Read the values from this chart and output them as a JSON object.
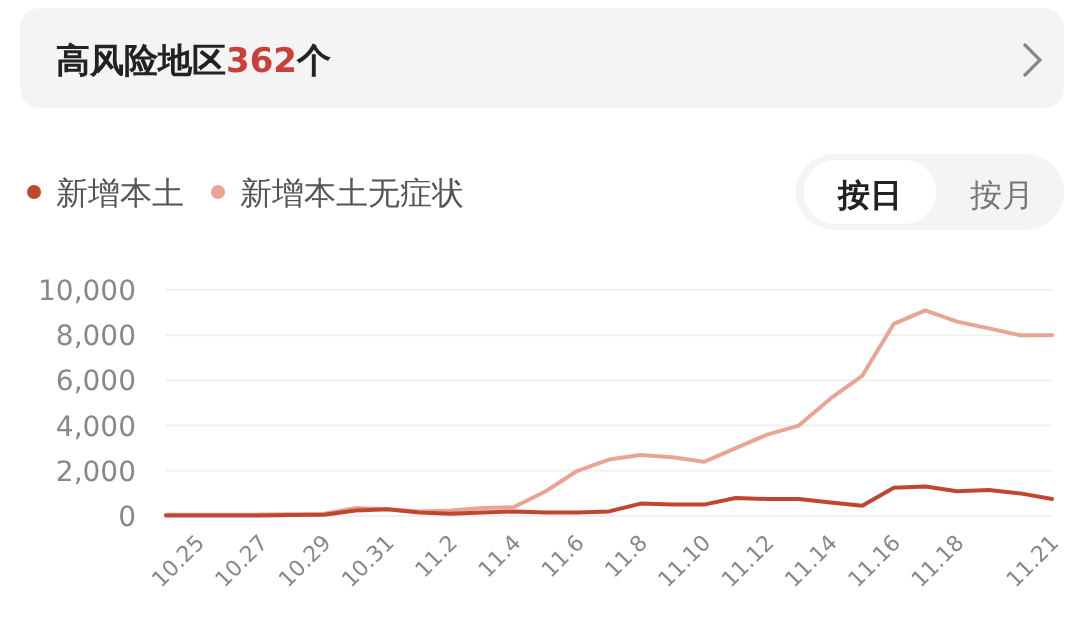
{
  "chart_data": {
    "type": "line",
    "title": "高风险地区362个",
    "annotations": [
      "按日",
      "按月"
    ],
    "categories": [
      null,
      "10.25",
      null,
      "10.27",
      null,
      "10.29",
      null,
      "10.31",
      null,
      "11.2",
      null,
      "11.4",
      null,
      "11.6",
      null,
      "11.8",
      null,
      "11.10",
      null,
      "11.12",
      null,
      "11.14",
      null,
      "11.16",
      null,
      "11.18",
      null,
      null,
      "11.21"
    ],
    "series": [
      {
        "name": "新增本土",
        "color": "#c0462f",
        "values": [
          20,
          20,
          30,
          30,
          40,
          50,
          250,
          300,
          150,
          100,
          150,
          200,
          150,
          150,
          200,
          550,
          500,
          500,
          800,
          750,
          750,
          600,
          450,
          1250,
          1300,
          1100,
          1150,
          1000,
          750
        ]
      },
      {
        "name": "新增本土无症状",
        "color": "#e8a597",
        "values": [
          50,
          50,
          50,
          60,
          80,
          100,
          350,
          300,
          200,
          250,
          350,
          400,
          1100,
          2000,
          2500,
          2700,
          2600,
          2400,
          3000,
          3600,
          4000,
          5200,
          6200,
          8500,
          9100,
          8600,
          8300,
          8000,
          8000
        ]
      }
    ],
    "ylim": [
      0,
      10000
    ],
    "yticks": [
      0,
      {
        "value": 2000,
        "label": "2,000"
      },
      {
        "value": 4000,
        "label": "4,000"
      },
      {
        "value": 6000,
        "label": "6,000"
      },
      {
        "value": 8000,
        "label": "8,000"
      },
      {
        "value": 10000,
        "label": "10,000"
      }
    ],
    "grid": "y",
    "legend": "top left",
    "line_style": "solid"
  }
}
